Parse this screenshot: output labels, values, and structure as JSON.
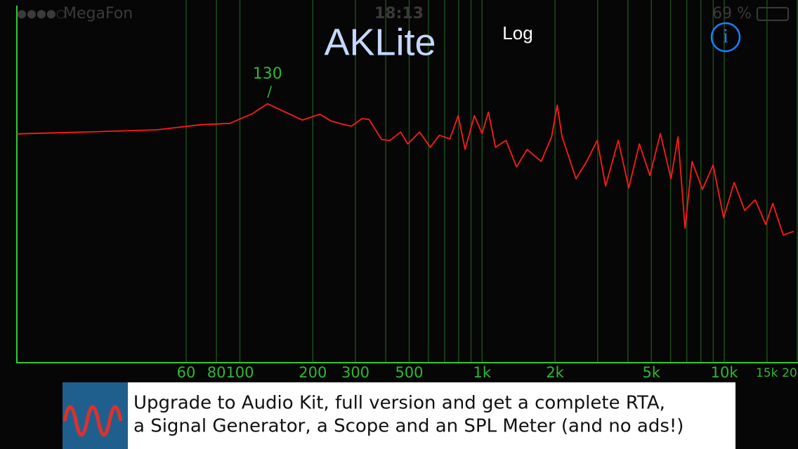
{
  "status_bar": {
    "carrier": "MegaFon",
    "time": "18:13",
    "battery": "69 %"
  },
  "header": {
    "title": "AKLite",
    "scale_button": "Log",
    "info_button": "i"
  },
  "chart_data": {
    "type": "line",
    "log_x": true,
    "color": "#ff1a1a",
    "grid": true,
    "x": [
      12,
      22.9,
      45.2,
      68.9,
      91,
      113,
      130,
      181,
      214,
      237,
      270,
      289,
      319,
      341,
      385,
      417,
      461,
      493,
      552,
      611,
      666,
      736,
      797,
      851,
      929,
      1000,
      1062,
      1135,
      1255,
      1387,
      1534,
      1752,
      1937,
      2042,
      2139,
      2287,
      2443,
      2702,
      2987,
      3236,
      3648,
      4034,
      4460,
      4932,
      5445,
      6026,
      6442,
      6887,
      7362,
      8128,
      8995,
      9931,
      10990,
      12140,
      13420,
      14830,
      15850,
      17510,
      19360
    ],
    "values": [
      63.1,
      63.6,
      64.2,
      65.6,
      66,
      68.7,
      71.4,
      66.9,
      68.5,
      66.7,
      65.6,
      65.2,
      67.3,
      67.1,
      61.5,
      61.3,
      63.6,
      60.3,
      63.6,
      59.4,
      62.7,
      61.7,
      68.1,
      58.8,
      68.1,
      63.2,
      69.1,
      59.4,
      61.3,
      54,
      58.8,
      55.5,
      62.3,
      71,
      62.3,
      56.5,
      50.7,
      55.5,
      61.3,
      48.7,
      61.3,
      48.2,
      60.3,
      51.6,
      63.2,
      50.7,
      62.3,
      37.1,
      55.5,
      47.8,
      54.5,
      40,
      49.7,
      42,
      44.9,
      38.1,
      43.9,
      35.2,
      36.2
    ],
    "xlim": [
      12,
      20150
    ],
    "ylim": [
      0,
      100
    ],
    "xticks": [
      60,
      80,
      100,
      200,
      300,
      500,
      {
        "value": 1000,
        "label": "1k"
      },
      {
        "value": 2000,
        "label": "2k"
      },
      {
        "value": 5000,
        "label": "5k"
      },
      {
        "value": 10000,
        "label": "10k"
      },
      {
        "value": 15000,
        "label": "15k"
      },
      {
        "value": 20000,
        "label": "20"
      }
    ],
    "xminor": [
      400,
      600,
      700,
      800,
      900,
      3000,
      4000,
      6000,
      7000,
      8000,
      9000
    ],
    "annotation": {
      "x": 130,
      "marker": "/"
    }
  },
  "ad": {
    "lines": [
      "Upgrade to Audio Kit, full version and get a complete RTA,",
      "a Signal Generator, a Scope and an SPL Meter (and no ads!)"
    ]
  }
}
